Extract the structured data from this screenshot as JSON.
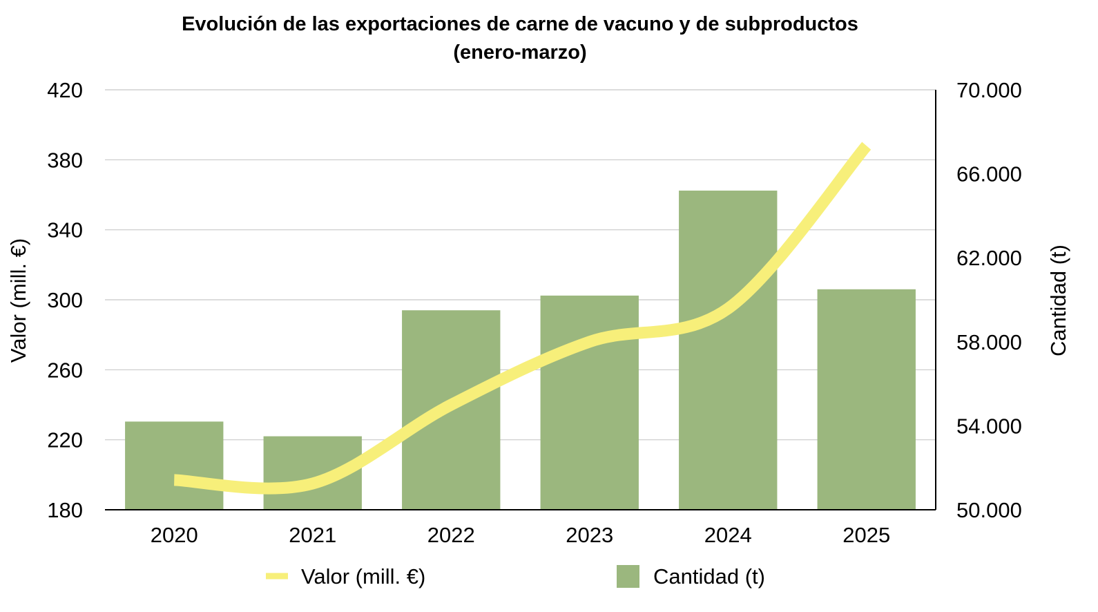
{
  "chart_data": {
    "type": "bar",
    "title": "Evolución de las exportaciones de carne de vacuno y de subproductos",
    "subtitle": "(enero-marzo)",
    "categories": [
      "2020",
      "2021",
      "2022",
      "2023",
      "2024",
      "2025"
    ],
    "series": [
      {
        "name": "Cantidad (t)",
        "type": "bar",
        "axis": "right",
        "color": "#9bb77e",
        "values": [
          54200,
          53500,
          59500,
          60200,
          65200,
          60500
        ]
      },
      {
        "name": "Valor (mill. €)",
        "type": "line",
        "axis": "left",
        "color": "#f7ef7a",
        "values": [
          197,
          195,
          240,
          276,
          295,
          388
        ]
      }
    ],
    "ylabel_left": "Valor (mill. €)",
    "ylabel_right": "Cantidad (t)",
    "ylim_left": [
      180,
      420
    ],
    "ylim_right": [
      50000,
      70000
    ],
    "yticks_left": [
      "180",
      "220",
      "260",
      "300",
      "340",
      "380",
      "420"
    ],
    "yticks_right": [
      "50.000",
      "54.000",
      "58.000",
      "62.000",
      "66.000",
      "70.000"
    ],
    "grid": true,
    "legend_position": "bottom"
  }
}
